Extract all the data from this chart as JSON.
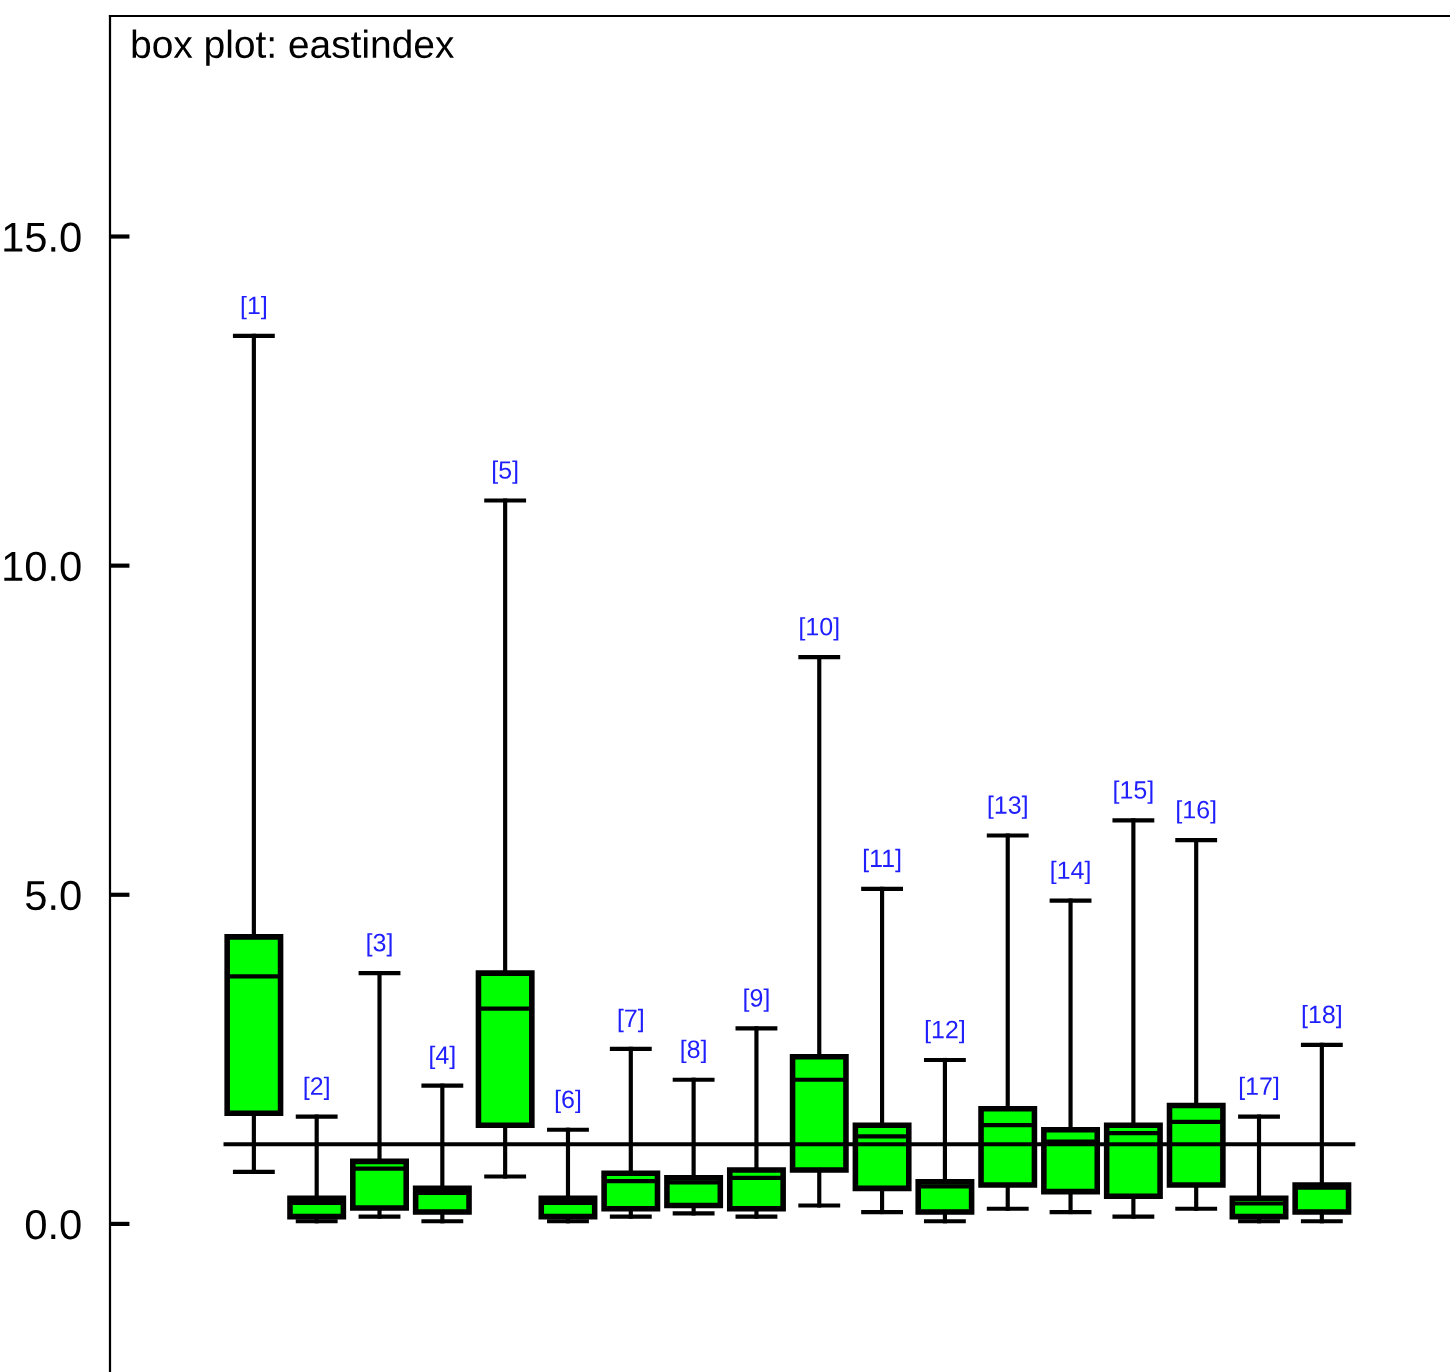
{
  "chart_data": {
    "type": "box",
    "title": "box plot: eastindex",
    "categories": [
      "[1]",
      "[2]",
      "[3]",
      "[4]",
      "[5]",
      "[6]",
      "[7]",
      "[8]",
      "[9]",
      "[10]",
      "[11]",
      "[12]",
      "[13]",
      "[14]",
      "[15]",
      "[16]",
      "[17]",
      "[18]"
    ],
    "boxes": [
      {
        "low": 0.79,
        "q1": 1.68,
        "median": 3.76,
        "q3": 4.36,
        "high": 13.49
      },
      {
        "low": 0.04,
        "q1": 0.11,
        "median": 0.32,
        "q3": 0.39,
        "high": 1.63
      },
      {
        "low": 0.11,
        "q1": 0.24,
        "median": 0.84,
        "q3": 0.95,
        "high": 3.81
      },
      {
        "low": 0.04,
        "q1": 0.18,
        "median": 0.47,
        "q3": 0.54,
        "high": 2.1
      },
      {
        "low": 0.72,
        "q1": 1.5,
        "median": 3.27,
        "q3": 3.81,
        "high": 10.99
      },
      {
        "low": 0.04,
        "q1": 0.11,
        "median": 0.32,
        "q3": 0.39,
        "high": 1.43
      },
      {
        "low": 0.11,
        "q1": 0.23,
        "median": 0.65,
        "q3": 0.77,
        "high": 2.66
      },
      {
        "low": 0.16,
        "q1": 0.28,
        "median": 0.63,
        "q3": 0.7,
        "high": 2.19
      },
      {
        "low": 0.11,
        "q1": 0.23,
        "median": 0.7,
        "q3": 0.82,
        "high": 2.97
      },
      {
        "low": 0.28,
        "q1": 0.82,
        "median": 2.19,
        "q3": 2.54,
        "high": 8.61
      },
      {
        "low": 0.18,
        "q1": 0.54,
        "median": 1.33,
        "q3": 1.5,
        "high": 5.09
      },
      {
        "low": 0.04,
        "q1": 0.18,
        "median": 0.57,
        "q3": 0.64,
        "high": 2.49
      },
      {
        "low": 0.23,
        "q1": 0.59,
        "median": 1.5,
        "q3": 1.75,
        "high": 5.9
      },
      {
        "low": 0.18,
        "q1": 0.49,
        "median": 1.25,
        "q3": 1.43,
        "high": 4.91
      },
      {
        "low": 0.11,
        "q1": 0.42,
        "median": 1.38,
        "q3": 1.5,
        "high": 6.13
      },
      {
        "low": 0.23,
        "q1": 0.59,
        "median": 1.55,
        "q3": 1.8,
        "high": 5.83
      },
      {
        "low": 0.04,
        "q1": 0.11,
        "median": 0.31,
        "q3": 0.39,
        "high": 1.63
      },
      {
        "low": 0.04,
        "q1": 0.18,
        "median": 0.55,
        "q3": 0.59,
        "high": 2.72
      }
    ],
    "color": "#00ff00",
    "ylim": [
      -2.25,
      18.35
    ],
    "yticks": [
      {
        "value": 0,
        "label": "0.0"
      },
      {
        "value": 5,
        "label": "5.0"
      },
      {
        "value": 10,
        "label": "10.0"
      },
      {
        "value": 15,
        "label": "15.0"
      }
    ],
    "ref_lines": [
      {
        "axis": "y",
        "value": 1.21,
        "label": null,
        "color": "#000000"
      }
    ],
    "tick_labels": "y",
    "grid": false,
    "legend": false
  }
}
